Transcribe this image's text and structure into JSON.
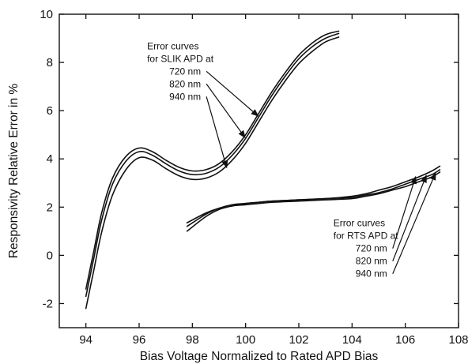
{
  "chart_data": {
    "type": "line",
    "xlabel": "Bias Voltage Normalized to Rated APD Bias",
    "ylabel": "Responsivity Relative Error in %",
    "xlim": [
      93,
      108
    ],
    "ylim": [
      -3,
      10
    ],
    "xticks": [
      94,
      96,
      98,
      100,
      102,
      104,
      106,
      108
    ],
    "yticks": [
      -2,
      0,
      2,
      4,
      6,
      8,
      10
    ],
    "grid": false,
    "series": [
      {
        "group": "SLIK",
        "name": "720 nm",
        "x": [
          94.0,
          94.3,
          94.6,
          95.0,
          95.5,
          96.0,
          96.5,
          97.0,
          97.5,
          98.0,
          98.5,
          99.0,
          99.5,
          100.0,
          100.5,
          101.0,
          101.5,
          102.0,
          102.5,
          103.0,
          103.5
        ],
        "y": [
          -1.4,
          0.2,
          1.8,
          3.2,
          4.1,
          4.45,
          4.3,
          3.95,
          3.65,
          3.5,
          3.55,
          3.8,
          4.3,
          5.0,
          5.9,
          6.8,
          7.6,
          8.3,
          8.8,
          9.15,
          9.3
        ]
      },
      {
        "group": "SLIK",
        "name": "820 nm",
        "x": [
          94.0,
          94.3,
          94.6,
          95.0,
          95.5,
          96.0,
          96.5,
          97.0,
          97.5,
          98.0,
          98.5,
          99.0,
          99.5,
          100.0,
          100.5,
          101.0,
          101.5,
          102.0,
          102.5,
          103.0,
          103.5
        ],
        "y": [
          -1.7,
          -0.1,
          1.5,
          2.95,
          3.9,
          4.3,
          4.15,
          3.8,
          3.5,
          3.35,
          3.4,
          3.65,
          4.15,
          4.85,
          5.75,
          6.65,
          7.45,
          8.15,
          8.65,
          9.0,
          9.2
        ]
      },
      {
        "group": "SLIK",
        "name": "940 nm",
        "x": [
          94.0,
          94.3,
          94.6,
          95.0,
          95.5,
          96.0,
          96.5,
          97.0,
          97.5,
          98.0,
          98.5,
          99.0,
          99.5,
          100.0,
          100.5,
          101.0,
          101.5,
          102.0,
          102.5,
          103.0,
          103.5
        ],
        "y": [
          -2.2,
          -0.6,
          1.0,
          2.5,
          3.55,
          4.05,
          3.95,
          3.6,
          3.3,
          3.15,
          3.2,
          3.45,
          3.95,
          4.65,
          5.55,
          6.45,
          7.25,
          7.95,
          8.45,
          8.85,
          9.05
        ]
      },
      {
        "group": "RTS",
        "name": "720 nm",
        "x": [
          97.8,
          98.5,
          99.0,
          99.5,
          100.0,
          100.5,
          101.0,
          102.0,
          103.0,
          104.0,
          104.5,
          105.0,
          105.5,
          106.0,
          106.5,
          107.0,
          107.3
        ],
        "y": [
          1.0,
          1.6,
          1.9,
          2.05,
          2.15,
          2.2,
          2.25,
          2.3,
          2.35,
          2.45,
          2.55,
          2.7,
          2.85,
          3.05,
          3.25,
          3.5,
          3.7
        ]
      },
      {
        "group": "RTS",
        "name": "820 nm",
        "x": [
          97.8,
          98.5,
          99.0,
          99.5,
          100.0,
          100.5,
          101.0,
          102.0,
          103.0,
          104.0,
          104.5,
          105.0,
          105.5,
          106.0,
          106.5,
          107.0,
          107.3
        ],
        "y": [
          1.2,
          1.7,
          1.95,
          2.1,
          2.15,
          2.2,
          2.25,
          2.3,
          2.35,
          2.4,
          2.5,
          2.6,
          2.75,
          2.95,
          3.15,
          3.35,
          3.55
        ]
      },
      {
        "group": "RTS",
        "name": "940 nm",
        "x": [
          97.8,
          98.5,
          99.0,
          99.5,
          100.0,
          100.5,
          101.0,
          102.0,
          103.0,
          104.0,
          104.5,
          105.0,
          105.5,
          106.0,
          106.5,
          107.0,
          107.3
        ],
        "y": [
          1.35,
          1.75,
          1.95,
          2.05,
          2.1,
          2.15,
          2.2,
          2.25,
          2.3,
          2.35,
          2.45,
          2.55,
          2.7,
          2.85,
          3.05,
          3.25,
          3.45
        ]
      }
    ],
    "annotations": [
      {
        "lines": [
          "Error curves",
          "for SLIK APD at"
        ],
        "labels": [
          "720 nm",
          "820 nm",
          "940 nm"
        ],
        "anchor_x": 96.3,
        "anchor_y": 8.55,
        "targets": [
          [
            100.5,
            5.75
          ],
          [
            100.0,
            4.85
          ],
          [
            99.3,
            3.6
          ]
        ]
      },
      {
        "lines": [
          "Error curves",
          "for RTS APD at"
        ],
        "labels": [
          "720 nm",
          "820 nm",
          "940 nm"
        ],
        "anchor_x": 103.3,
        "anchor_y": 1.2,
        "targets": [
          [
            106.4,
            3.3
          ],
          [
            106.8,
            3.35
          ],
          [
            107.15,
            3.45
          ]
        ]
      }
    ]
  }
}
